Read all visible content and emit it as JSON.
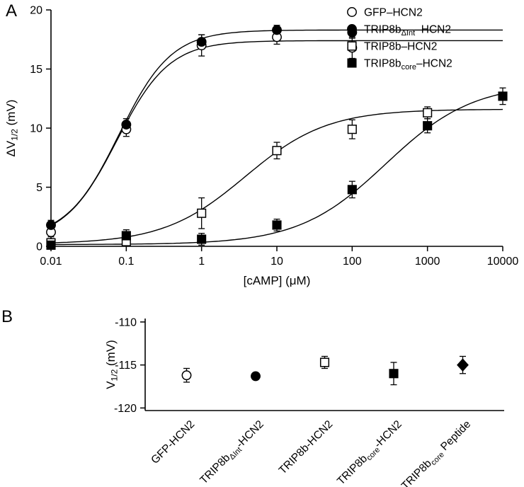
{
  "panels": {
    "a": "A",
    "b": "B"
  },
  "chart_data": [
    {
      "panel": "A",
      "type": "scatter",
      "xscale": "log",
      "xlabel": "[cAMP] (μM)",
      "ylabel_parts": [
        {
          "t": "ΔV"
        },
        {
          "t": "1/2",
          "sub": true
        },
        {
          "t": " (mV)"
        }
      ],
      "xlim": [
        0.01,
        10000
      ],
      "ylim": [
        0,
        20
      ],
      "grid": false,
      "legend_position": "top-right",
      "xticks": [
        {
          "v": 0.01,
          "label": "0.01"
        },
        {
          "v": 0.1,
          "label": "0.1"
        },
        {
          "v": 1,
          "label": "1"
        },
        {
          "v": 10,
          "label": "10"
        },
        {
          "v": 100,
          "label": "100"
        },
        {
          "v": 1000,
          "label": "1000"
        },
        {
          "v": 10000,
          "label": "10000"
        }
      ],
      "yticks": [
        {
          "v": 0,
          "label": "0"
        },
        {
          "v": 5,
          "label": "5"
        },
        {
          "v": 10,
          "label": "10"
        },
        {
          "v": 15,
          "label": "15"
        },
        {
          "v": 20,
          "label": "20"
        }
      ],
      "series": [
        {
          "name_parts": [
            {
              "t": "GFP–HCN2"
            }
          ],
          "marker": "circle",
          "filled": false,
          "x": [
            0.01,
            0.1,
            1,
            10,
            100
          ],
          "y": [
            1.2,
            9.9,
            17.0,
            17.7,
            16.8
          ],
          "err": [
            0.4,
            0.6,
            0.9,
            0.6,
            0.9
          ],
          "fit_hill": {
            "bottom": 0.5,
            "top": 17.4,
            "ec50": 0.075,
            "hill": 1.25
          }
        },
        {
          "name_parts": [
            {
              "t": "TRIP8b"
            },
            {
              "t": "ΔInt",
              "sub": true
            },
            {
              "t": "–HCN2"
            }
          ],
          "marker": "circle",
          "filled": true,
          "x": [
            0.01,
            0.1,
            1,
            10,
            100
          ],
          "y": [
            1.8,
            10.3,
            17.3,
            18.3,
            18.1
          ],
          "err": [
            0.4,
            0.5,
            0.6,
            0.4,
            0.5
          ],
          "fit_hill": {
            "bottom": 0.6,
            "top": 18.3,
            "ec50": 0.08,
            "hill": 1.25
          }
        },
        {
          "name_parts": [
            {
              "t": "TRIP8b–HCN2"
            }
          ],
          "marker": "square",
          "filled": false,
          "x": [
            0.01,
            0.1,
            1,
            10,
            100,
            1000
          ],
          "y": [
            0.3,
            0.4,
            2.8,
            8.1,
            9.9,
            11.3
          ],
          "err": [
            0.3,
            0.3,
            1.3,
            0.7,
            0.8,
            0.5
          ],
          "fit_hill": {
            "bottom": 0.2,
            "top": 11.6,
            "ec50": 3.8,
            "hill": 0.8
          }
        },
        {
          "name_parts": [
            {
              "t": "TRIP8b"
            },
            {
              "t": "core",
              "sub": true
            },
            {
              "t": "–HCN2"
            }
          ],
          "marker": "square",
          "filled": true,
          "x": [
            0.01,
            0.1,
            1,
            10,
            100,
            1000,
            10000
          ],
          "y": [
            0.1,
            0.9,
            0.6,
            1.8,
            4.8,
            10.2,
            12.7
          ],
          "err": [
            0.2,
            0.5,
            0.5,
            0.5,
            0.7,
            0.6,
            0.7
          ],
          "fit_hill": {
            "bottom": 0.15,
            "top": 13.8,
            "ec50": 280,
            "hill": 0.75
          }
        }
      ]
    },
    {
      "panel": "B",
      "type": "scatter",
      "ylabel_parts": [
        {
          "t": "V"
        },
        {
          "t": "1/2",
          "sub": true
        },
        {
          "t": " (mV)"
        }
      ],
      "ylim": [
        -120.3,
        -109.6
      ],
      "grid": false,
      "yticks": [
        {
          "v": -110,
          "label": "-110"
        },
        {
          "v": -115,
          "label": "-115"
        },
        {
          "v": -120,
          "label": "-120"
        }
      ],
      "points": [
        {
          "label_parts": [
            {
              "t": "GFP-HCN2"
            }
          ],
          "marker": "circle",
          "filled": false,
          "value": -116.2,
          "err": 0.8
        },
        {
          "label_parts": [
            {
              "t": "TRIP8b"
            },
            {
              "t": "ΔInt",
              "sub": true
            },
            {
              "t": "-HCN2"
            }
          ],
          "marker": "circle",
          "filled": true,
          "value": -116.3,
          "err": 0.3
        },
        {
          "label_parts": [
            {
              "t": "TRIP8b-HCN2"
            }
          ],
          "marker": "square",
          "filled": false,
          "value": -114.7,
          "err": 0.7
        },
        {
          "label_parts": [
            {
              "t": "TRIP8b"
            },
            {
              "t": "core",
              "sub": true
            },
            {
              "t": "-HCN2"
            }
          ],
          "marker": "square",
          "filled": true,
          "value": -116.0,
          "err": 1.3
        },
        {
          "label_parts": [
            {
              "t": "TRIP8b"
            },
            {
              "t": "core",
              "sub": true
            },
            {
              "t": " Peptide"
            }
          ],
          "marker": "diamond",
          "filled": true,
          "value": -115.0,
          "err": 1.0
        }
      ]
    }
  ]
}
